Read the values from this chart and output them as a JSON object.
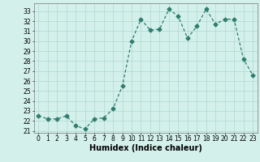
{
  "x": [
    0,
    1,
    2,
    3,
    4,
    5,
    6,
    7,
    8,
    9,
    10,
    11,
    12,
    13,
    14,
    15,
    16,
    17,
    18,
    19,
    20,
    21,
    22,
    23
  ],
  "y": [
    22.5,
    22.2,
    22.2,
    22.5,
    21.5,
    21.2,
    22.2,
    22.3,
    23.2,
    25.5,
    30.0,
    32.2,
    31.1,
    31.2,
    33.2,
    32.5,
    30.3,
    31.5,
    33.2,
    31.7,
    32.2,
    32.2,
    28.2,
    26.6
  ],
  "xlabel": "Humidex (Indice chaleur)",
  "xlim": [
    -0.5,
    23.5
  ],
  "ylim": [
    20.8,
    33.8
  ],
  "yticks": [
    21,
    22,
    23,
    24,
    25,
    26,
    27,
    28,
    29,
    30,
    31,
    32,
    33
  ],
  "xticks": [
    0,
    1,
    2,
    3,
    4,
    5,
    6,
    7,
    8,
    9,
    10,
    11,
    12,
    13,
    14,
    15,
    16,
    17,
    18,
    19,
    20,
    21,
    22,
    23
  ],
  "line_color": "#2e7d6e",
  "marker": "D",
  "marker_size": 2.5,
  "bg_color": "#d4f0eb",
  "grid_color": "#b0d8d0",
  "label_fontsize": 7,
  "tick_fontsize": 5.5
}
